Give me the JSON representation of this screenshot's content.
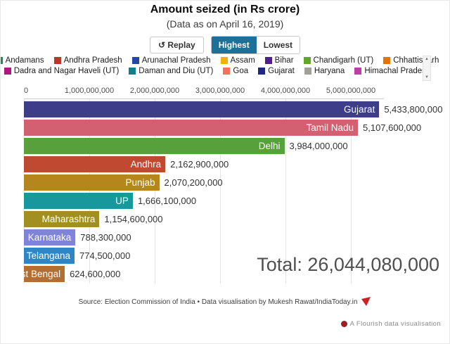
{
  "header": {
    "title": "Amount seized (in Rs crore)",
    "subtitle": "(Data as on April 16, 2019)"
  },
  "controls": {
    "replay_icon": "↺",
    "replay_label": "Replay",
    "highest_label": "Highest",
    "lowest_label": "Lowest",
    "selected": "Highest",
    "selected_bg": "#1d7098"
  },
  "legend": {
    "row1": [
      {
        "label": "Andamans",
        "color": "#13914e"
      },
      {
        "label": "Andhra Pradesh",
        "color": "#b23a2a"
      },
      {
        "label": "Arunachal Pradesh",
        "color": "#2547a8"
      },
      {
        "label": "Assam",
        "color": "#eeb111"
      },
      {
        "label": "Bihar",
        "color": "#4f1f8a"
      },
      {
        "label": "Chandigarh (UT)",
        "color": "#63a62d"
      },
      {
        "label": "Chhattisgarh",
        "color": "#e2750e"
      }
    ],
    "row2": [
      {
        "label": "Dadra and Nagar Haveli (UT)",
        "color": "#b0187d"
      },
      {
        "label": "Daman and Diu (UT)",
        "color": "#0f7f88"
      },
      {
        "label": "Goa",
        "color": "#f5715d"
      },
      {
        "label": "Gujarat",
        "color": "#20287e"
      },
      {
        "label": "Haryana",
        "color": "#a0a096"
      },
      {
        "label": "Himachal Pradesh",
        "color": "#bb3fa5"
      }
    ]
  },
  "chart_data": {
    "type": "bar",
    "orientation": "horizontal",
    "title": "Amount seized (in Rs crore)",
    "subtitle": "(Data as on April 16, 2019)",
    "xlim": [
      0,
      5500000000
    ],
    "x_ticks": [
      "0",
      "1,000,000,000",
      "2,000,000,000",
      "3,000,000,000",
      "4,000,000,000",
      "5,000,000,000"
    ],
    "grid": true,
    "bars": [
      {
        "label": "Gujarat",
        "value": 5433800000,
        "value_label": "5,433,800,000",
        "color": "#3d3d8a"
      },
      {
        "label": "Tamil Nadu",
        "value": 5107600000,
        "value_label": "5,107,600,000",
        "color": "#d26070"
      },
      {
        "label": "Delhi",
        "value": 3984000000,
        "value_label": "3,984,000,000",
        "color": "#57a03c"
      },
      {
        "label": "Andhra",
        "value": 2162900000,
        "value_label": "2,162,900,000",
        "color": "#c04a31"
      },
      {
        "label": "Punjab",
        "value": 2070200000,
        "value_label": "2,070,200,000",
        "color": "#b5861b"
      },
      {
        "label": "UP",
        "value": 1666100000,
        "value_label": "1,666,100,000",
        "color": "#18979c"
      },
      {
        "label": "Maharashtra",
        "value": 1154600000,
        "value_label": "1,154,600,000",
        "color": "#a19021"
      },
      {
        "label": "Karnataka",
        "value": 788300000,
        "value_label": "788,300,000",
        "color": "#8084d8"
      },
      {
        "label": "Telangana",
        "value": 774500000,
        "value_label": "774,500,000",
        "color": "#2e86c6"
      },
      {
        "label": "West Bengal",
        "value": 624600000,
        "value_label": "624,600,000",
        "color": "#b26e33"
      }
    ],
    "total_label": "Total: 26,044,080,000"
  },
  "footer": {
    "source": "Source: Election Commission of India • Data visualisation by Mukesh Rawat/IndiaToday.in",
    "flourish": "A Flourish data visualisation"
  }
}
